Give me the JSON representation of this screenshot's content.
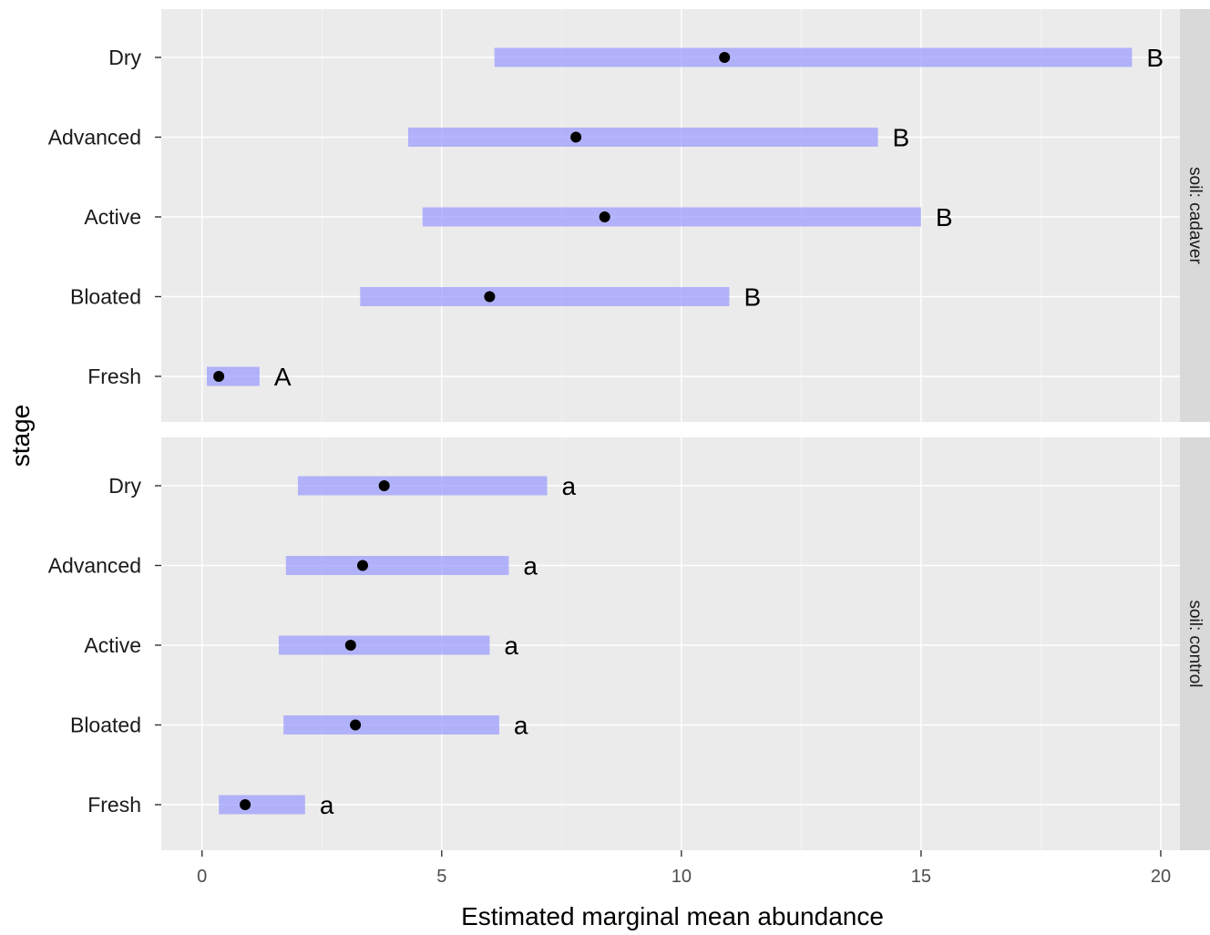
{
  "chart_data": {
    "type": "bar",
    "subtype": "interval",
    "xlabel": "Estimated marginal mean abundance",
    "ylabel": "stage",
    "xlim": [
      -0.85,
      20.4
    ],
    "x_ticks": [
      0,
      5,
      10,
      15,
      20
    ],
    "x_tick_labels": [
      "0",
      "5",
      "10",
      "15",
      "20"
    ],
    "categories": [
      "Fresh",
      "Bloated",
      "Active",
      "Advanced",
      "Dry"
    ],
    "grid": true,
    "facets": [
      {
        "strip": "soil: cadaver",
        "rows": [
          {
            "stage": "Dry",
            "mean": 10.9,
            "lower": 6.1,
            "upper": 19.4,
            "group": "B"
          },
          {
            "stage": "Advanced",
            "mean": 7.8,
            "lower": 4.3,
            "upper": 14.1,
            "group": "B"
          },
          {
            "stage": "Active",
            "mean": 8.4,
            "lower": 4.6,
            "upper": 15.0,
            "group": "B"
          },
          {
            "stage": "Bloated",
            "mean": 6.0,
            "lower": 3.3,
            "upper": 11.0,
            "group": "B"
          },
          {
            "stage": "Fresh",
            "mean": 0.35,
            "lower": 0.1,
            "upper": 1.2,
            "group": "A"
          }
        ]
      },
      {
        "strip": "soil: control",
        "rows": [
          {
            "stage": "Dry",
            "mean": 3.8,
            "lower": 2.0,
            "upper": 7.2,
            "group": "a"
          },
          {
            "stage": "Advanced",
            "mean": 3.35,
            "lower": 1.75,
            "upper": 6.4,
            "group": "a"
          },
          {
            "stage": "Active",
            "mean": 3.1,
            "lower": 1.6,
            "upper": 6.0,
            "group": "a"
          },
          {
            "stage": "Bloated",
            "mean": 3.2,
            "lower": 1.7,
            "upper": 6.2,
            "group": "a"
          },
          {
            "stage": "Fresh",
            "mean": 0.9,
            "lower": 0.35,
            "upper": 2.15,
            "group": "a"
          }
        ]
      }
    ],
    "colors": {
      "interval": "#9999ff",
      "point": "#000000",
      "panel": "#ebebeb",
      "strip": "#d9d9d9"
    }
  }
}
